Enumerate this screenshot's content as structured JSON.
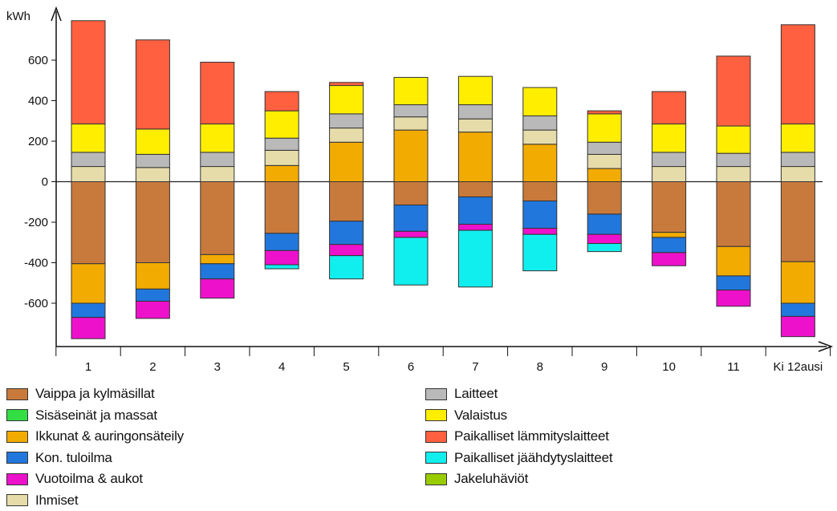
{
  "chart_data": {
    "type": "stacked-bar",
    "ylabel": "kWh",
    "ylim": [
      -800,
      800
    ],
    "yticks": [
      -600,
      -400,
      -200,
      0,
      200,
      400,
      600
    ],
    "ytick_labels": [
      "-600",
      "-400",
      "-200",
      "0",
      "200",
      "400",
      "600"
    ],
    "categories": [
      "1",
      "2",
      "3",
      "4",
      "5",
      "6",
      "7",
      "8",
      "9",
      "10",
      "11",
      "Ki 12ausi"
    ],
    "grid": false,
    "legend_position": "bottom",
    "series": [
      {
        "name": "Vaippa ja kylmäsillat",
        "color": "#c87a3c",
        "values": [
          -405,
          -400,
          -360,
          -255,
          -195,
          -115,
          -75,
          -95,
          -160,
          -250,
          -320,
          -395
        ]
      },
      {
        "name": "Sisäseinät ja massat",
        "color": "#33dd44",
        "values": [
          0,
          0,
          0,
          0,
          0,
          0,
          0,
          0,
          0,
          0,
          0,
          0
        ]
      },
      {
        "name": "Ikkunat & auringonsäteily",
        "color": "#f2ab00",
        "values": [
          -195,
          -130,
          -45,
          80,
          195,
          255,
          245,
          185,
          65,
          -25,
          -145,
          -205
        ]
      },
      {
        "name": "Kon. tuloilma",
        "color": "#2277dd",
        "values": [
          -70,
          -60,
          -75,
          -85,
          -115,
          -130,
          -135,
          -135,
          -100,
          -75,
          -70,
          -65
        ]
      },
      {
        "name": "Vuotoilma & aukot",
        "color": "#ee11cc",
        "values": [
          -105,
          -85,
          -95,
          -70,
          -55,
          -30,
          -30,
          -30,
          -45,
          -65,
          -80,
          -100
        ]
      },
      {
        "name": "Ihmiset",
        "color": "#e6dcaa",
        "values": [
          75,
          70,
          75,
          75,
          70,
          65,
          65,
          70,
          70,
          75,
          75,
          75
        ]
      },
      {
        "name": "Laitteet",
        "color": "#b9b9b9",
        "values": [
          70,
          65,
          70,
          60,
          70,
          60,
          70,
          70,
          60,
          70,
          65,
          70
        ]
      },
      {
        "name": "Valaistus",
        "color": "#ffee00",
        "values": [
          140,
          125,
          140,
          135,
          140,
          135,
          140,
          140,
          140,
          140,
          135,
          140
        ]
      },
      {
        "name": "Paikalliset lämmityslaitteet",
        "color": "#ff6040",
        "values": [
          510,
          440,
          305,
          95,
          15,
          0,
          0,
          0,
          15,
          160,
          345,
          490
        ]
      },
      {
        "name": "Paikalliset jäähdytyslaitteet",
        "color": "#11eeee",
        "values": [
          0,
          0,
          0,
          -20,
          -115,
          -235,
          -280,
          -180,
          -40,
          0,
          0,
          0
        ]
      },
      {
        "name": "Jakeluhäviöt",
        "color": "#99cc00",
        "values": [
          0,
          0,
          0,
          0,
          0,
          0,
          0,
          0,
          0,
          0,
          0,
          0
        ]
      }
    ]
  },
  "legend": {
    "columns": [
      [
        "Vaippa ja kylmäsillat",
        "Sisäseinät ja massat",
        "Ikkunat & auringonsäteily",
        "Kon. tuloilma",
        "Vuotoilma & aukot",
        "Ihmiset"
      ],
      [
        "Laitteet",
        "Valaistus",
        "Paikalliset lämmityslaitteet",
        "Paikalliset jäähdytyslaitteet",
        "Jakeluhäviöt"
      ]
    ]
  }
}
